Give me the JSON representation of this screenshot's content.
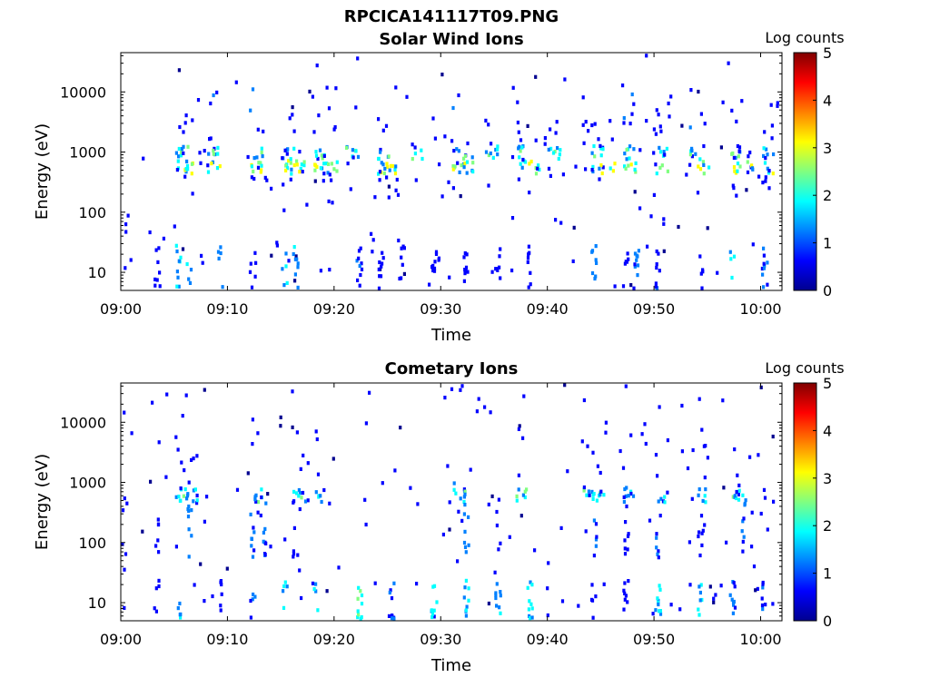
{
  "figure": {
    "title": "RPCICA141117T09.PNG"
  },
  "colors": {
    "colormap": [
      "#00008f",
      "#0000ff",
      "#0080ff",
      "#00ffff",
      "#80ff80",
      "#ffff00",
      "#ff8000",
      "#ff0000",
      "#800000"
    ]
  },
  "chart_data": [
    {
      "type": "heatmap",
      "title": "Solar Wind Ions",
      "xlabel": "Time",
      "ylabel": "Energy (eV)",
      "yscale": "log",
      "xlim": [
        "09:00",
        "10:02"
      ],
      "ylim": [
        5,
        45000
      ],
      "xticks": [
        "09:00",
        "09:10",
        "09:20",
        "09:30",
        "09:40",
        "09:50",
        "10:00"
      ],
      "yticks": [
        "10",
        "100",
        "1000",
        "10000"
      ],
      "colorbar": {
        "label": "Log counts",
        "min": 0,
        "max": 5,
        "ticks": [
          "0",
          "1",
          "2",
          "3",
          "4",
          "5"
        ]
      },
      "bands": [
        {
          "name": "~600 eV band",
          "times": [
            "09:05",
            "09:06",
            "09:08",
            "09:12",
            "09:15",
            "09:16",
            "09:18",
            "09:19",
            "09:24",
            "09:25",
            "09:31",
            "09:32",
            "09:37",
            "09:38",
            "09:44",
            "09:45",
            "09:47",
            "09:50",
            "09:54",
            "09:57",
            "09:58",
            "10:00"
          ],
          "energy": 600,
          "max_log_counts": 3.3
        },
        {
          "name": "~1000 eV band",
          "times": [
            "09:05",
            "09:08",
            "09:12",
            "09:15",
            "09:18",
            "09:21",
            "09:24",
            "09:27",
            "09:31",
            "09:34",
            "09:37",
            "09:40",
            "09:44",
            "09:47",
            "09:50",
            "09:53",
            "09:57",
            "10:00"
          ],
          "energy": 1050,
          "max_log_counts": 2.5
        },
        {
          "name": "low-energy streaks",
          "times": [
            "09:03",
            "09:05",
            "09:06",
            "09:09",
            "09:12",
            "09:15",
            "09:16",
            "09:22",
            "09:24",
            "09:26",
            "09:29",
            "09:32",
            "09:35",
            "09:38",
            "09:44",
            "09:47",
            "09:48",
            "09:50",
            "09:54",
            "09:57",
            "10:00"
          ],
          "energy_range": [
            5,
            30
          ],
          "max_log_counts": 2.0
        }
      ]
    },
    {
      "type": "heatmap",
      "title": "Cometary Ions",
      "xlabel": "Time",
      "ylabel": "Energy (eV)",
      "yscale": "log",
      "xlim": [
        "09:00",
        "10:02"
      ],
      "ylim": [
        5,
        45000
      ],
      "xticks": [
        "09:00",
        "09:10",
        "09:20",
        "09:30",
        "09:40",
        "09:50",
        "10:00"
      ],
      "yticks": [
        "10",
        "100",
        "1000",
        "10000"
      ],
      "colorbar": {
        "label": "Log counts",
        "min": 0,
        "max": 5,
        "ticks": [
          "0",
          "1",
          "2",
          "3",
          "4",
          "5"
        ]
      },
      "bands": [
        {
          "name": "~650 eV band",
          "times": [
            "09:05",
            "09:06",
            "09:12",
            "09:16",
            "09:18",
            "09:31",
            "09:37",
            "09:43",
            "09:44",
            "09:47",
            "09:50",
            "09:54",
            "09:57"
          ],
          "energy": 650,
          "max_log_counts": 2.3
        },
        {
          "name": "mid-energy streaks",
          "times": [
            "09:00",
            "09:03",
            "09:06",
            "09:12",
            "09:13",
            "09:16",
            "09:32",
            "09:35",
            "09:44",
            "09:47",
            "09:50",
            "09:54",
            "09:58"
          ],
          "energy_range": [
            60,
            700
          ],
          "max_log_counts": 1.5
        },
        {
          "name": "low-energy streaks",
          "times": [
            "09:03",
            "09:05",
            "09:09",
            "09:12",
            "09:15",
            "09:18",
            "09:22",
            "09:25",
            "09:29",
            "09:32",
            "09:35",
            "09:38",
            "09:44",
            "09:47",
            "09:50",
            "09:54",
            "09:57",
            "10:00"
          ],
          "energy_range": [
            5,
            25
          ],
          "max_log_counts": 2.5
        }
      ]
    }
  ]
}
